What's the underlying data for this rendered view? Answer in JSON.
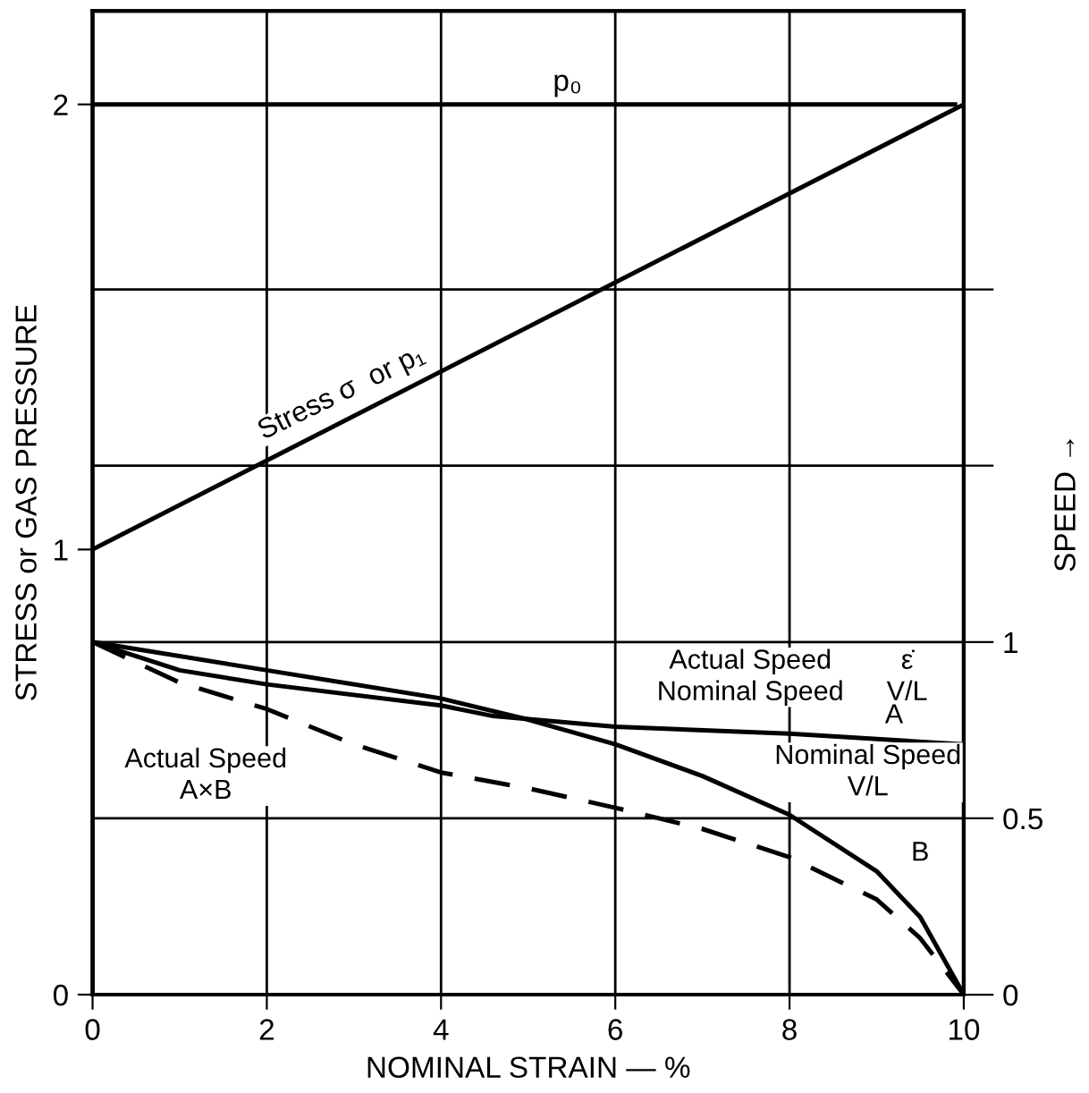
{
  "chart_data": {
    "type": "line",
    "xlabel": "NOMINAL STRAIN — %",
    "ylabel": "STRESS or GAS PRESSURE",
    "y2label": "SPEED →",
    "xlim": [
      0,
      10
    ],
    "xticks": [
      0,
      2,
      4,
      6,
      8,
      10
    ],
    "ylim": [
      0,
      2.21
    ],
    "yticks": [
      0,
      1,
      2
    ],
    "y2lim": [
      0,
      2.79
    ],
    "y2ticks": [
      0,
      0.5,
      1,
      {
        "value": 1.5,
        "label": null
      },
      {
        "value": 2,
        "label": null
      }
    ],
    "grid": true,
    "legend": false,
    "series": [
      {
        "name": "p₀",
        "color": "#000000",
        "x": [
          0,
          9.9
        ],
        "values": [
          2,
          2
        ],
        "line_style": "solid"
      },
      {
        "color": "#000000",
        "x": [
          0,
          0,
          10
        ],
        "values": [
          0,
          1,
          2
        ],
        "line_style": "solid"
      },
      {
        "color": "#000000",
        "axis": "y2",
        "x": [
          0,
          0.5,
          1,
          2,
          4,
          4.6,
          6,
          8,
          10
        ],
        "values": [
          1,
          0.96,
          0.92,
          0.88,
          0.82,
          0.79,
          0.76,
          0.74,
          0.71
        ],
        "line_style": "solid"
      },
      {
        "color": "#000000",
        "axis": "y2",
        "x": [
          0,
          2,
          4,
          5,
          6,
          7,
          8,
          9,
          9.5,
          10
        ],
        "values": [
          1,
          0.92,
          0.84,
          0.78,
          0.71,
          0.62,
          0.51,
          0.35,
          0.22,
          0
        ],
        "line_style": "solid"
      },
      {
        "color": "#000000",
        "axis": "y2",
        "x": [
          0,
          1,
          2,
          3,
          4,
          5,
          6,
          7,
          8,
          9,
          9.5,
          10
        ],
        "values": [
          1,
          0.885,
          0.81,
          0.71,
          0.63,
          0.585,
          0.53,
          0.47,
          0.39,
          0.27,
          0.16,
          0
        ],
        "line_style": "dashed"
      }
    ],
    "annotations": [
      {
        "text": "Stress σ  or p₁",
        "x": 3.0,
        "y": 1.3
      },
      "Actual Speed\nNominal Speed",
      "ε̇\nV/L",
      "A",
      "Nominal Speed\nV/L",
      "B",
      "Actual Speed\nA×B"
    ]
  }
}
